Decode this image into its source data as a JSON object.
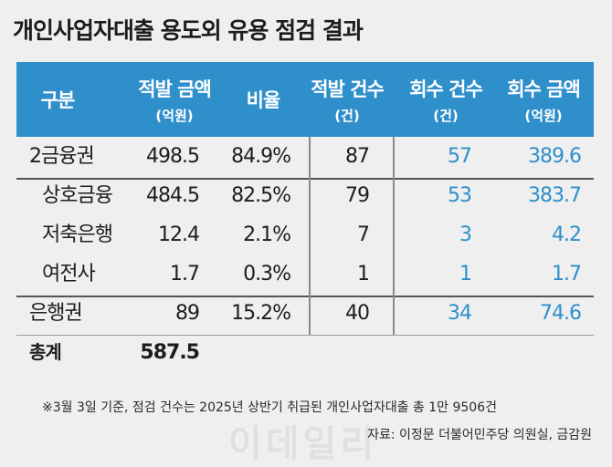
{
  "title": "개인사업자대출 용도외 유용 점검 결과",
  "chart_data": {
    "type": "table",
    "columns": [
      {
        "label": "구분",
        "unit": ""
      },
      {
        "label": "적발 금액",
        "unit": "(억원)"
      },
      {
        "label": "비율",
        "unit": ""
      },
      {
        "label": "적발 건수",
        "unit": "(건)"
      },
      {
        "label": "회수 건수",
        "unit": "(건)"
      },
      {
        "label": "회수 금액",
        "unit": "(억원)"
      }
    ],
    "rows": [
      {
        "name": "2금융권",
        "amount": "498.5",
        "ratio": "84.9%",
        "cases": "87",
        "recovered_cases": "57",
        "recovered_amount": "389.6"
      },
      {
        "name": "상호금융",
        "amount": "484.5",
        "ratio": "82.5%",
        "cases": "79",
        "recovered_cases": "53",
        "recovered_amount": "383.7"
      },
      {
        "name": "저축은행",
        "amount": "12.4",
        "ratio": "2.1%",
        "cases": "7",
        "recovered_cases": "3",
        "recovered_amount": "4.2"
      },
      {
        "name": "여전사",
        "amount": "1.7",
        "ratio": "0.3%",
        "cases": "1",
        "recovered_cases": "1",
        "recovered_amount": "1.7"
      },
      {
        "name": "은행권",
        "amount": "89",
        "ratio": "15.2%",
        "cases": "40",
        "recovered_cases": "34",
        "recovered_amount": "74.6"
      },
      {
        "name": "총계",
        "amount": "587.5",
        "ratio": "",
        "cases": "",
        "recovered_cases": "",
        "recovered_amount": ""
      }
    ]
  },
  "footnote": "※3월 3일 기준, 점검 건수는 2025년 상반기 취급된 개인사업자대출 총 1만 9506건",
  "source": "자료: 이정문 더불어민주당 의원실, 금감원",
  "colors": {
    "header_bg": "#2f8fcb",
    "recovered_text": "#2f8fcb",
    "background": "#efefef"
  }
}
